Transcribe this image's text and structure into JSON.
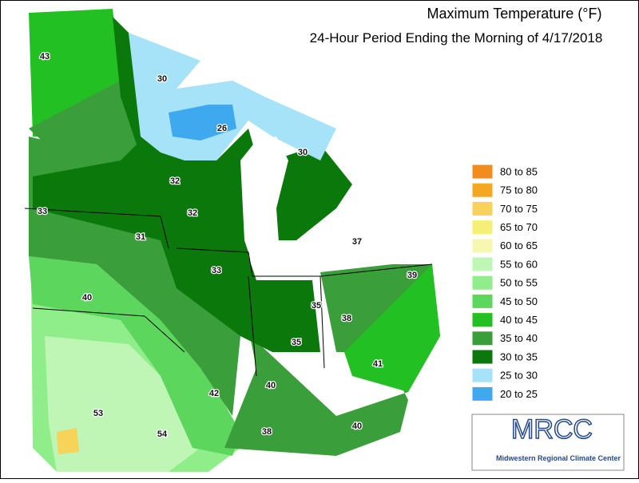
{
  "title": "Maximum Temperature (°F)",
  "subtitle": "24-Hour Period Ending the Morning of 4/17/2018",
  "legend": [
    {
      "label": "80 to 85",
      "color": "#f28c1c"
    },
    {
      "label": "75 to 80",
      "color": "#f5a623"
    },
    {
      "label": "70 to 75",
      "color": "#f7d35a"
    },
    {
      "label": "65 to 70",
      "color": "#f5ef78"
    },
    {
      "label": "60 to 65",
      "color": "#f7f7b0"
    },
    {
      "label": "55 to 60",
      "color": "#bff5b5"
    },
    {
      "label": "50 to 55",
      "color": "#8fee8a"
    },
    {
      "label": "45 to 50",
      "color": "#5cd65c"
    },
    {
      "label": "40 to 45",
      "color": "#22c022"
    },
    {
      "label": "35 to 40",
      "color": "#3a9e3a"
    },
    {
      "label": "30 to 35",
      "color": "#0a780a"
    },
    {
      "label": "25 to 30",
      "color": "#a6e2f8"
    },
    {
      "label": "20 to 25",
      "color": "#3fa9f0"
    }
  ],
  "station_labels": [
    "43",
    "30",
    "26",
    "30",
    "32",
    "33",
    "32",
    "31",
    "37",
    "33",
    "39",
    "40",
    "35",
    "38",
    "35",
    "42",
    "40",
    "41",
    "53",
    "54",
    "38",
    "40"
  ],
  "logo": {
    "name": "MRCC",
    "full_name": "Midwestern Regional Climate Center"
  }
}
